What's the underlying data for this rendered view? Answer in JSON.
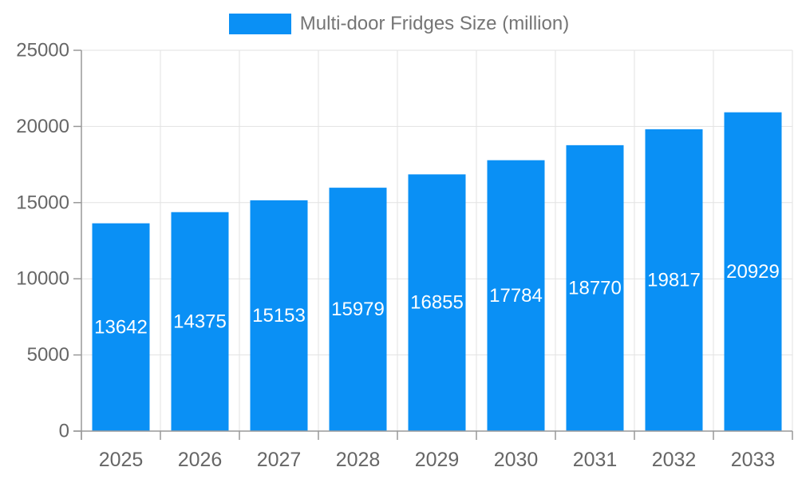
{
  "chart_data": {
    "type": "bar",
    "title": "Multi-door Fridges Size (million)",
    "categories": [
      "2025",
      "2026",
      "2027",
      "2028",
      "2029",
      "2030",
      "2031",
      "2032",
      "2033"
    ],
    "series": [
      {
        "name": "Multi-door Fridges Size (million)",
        "values": [
          13642,
          14375,
          15153,
          15979,
          16855,
          17784,
          18770,
          19817,
          20929
        ]
      }
    ],
    "xlabel": "",
    "ylabel": "",
    "ylim": [
      0,
      25000
    ],
    "yticks": [
      0,
      5000,
      10000,
      15000,
      20000,
      25000
    ],
    "grid": true,
    "legend_position": "top",
    "bar_color": "#0a90f5",
    "value_label_color": "#ffffff",
    "axis_label_color": "#666666",
    "legend_text_color": "#757575",
    "gridline_color": "#e2e2e2",
    "axis_line_color": "#999999"
  }
}
